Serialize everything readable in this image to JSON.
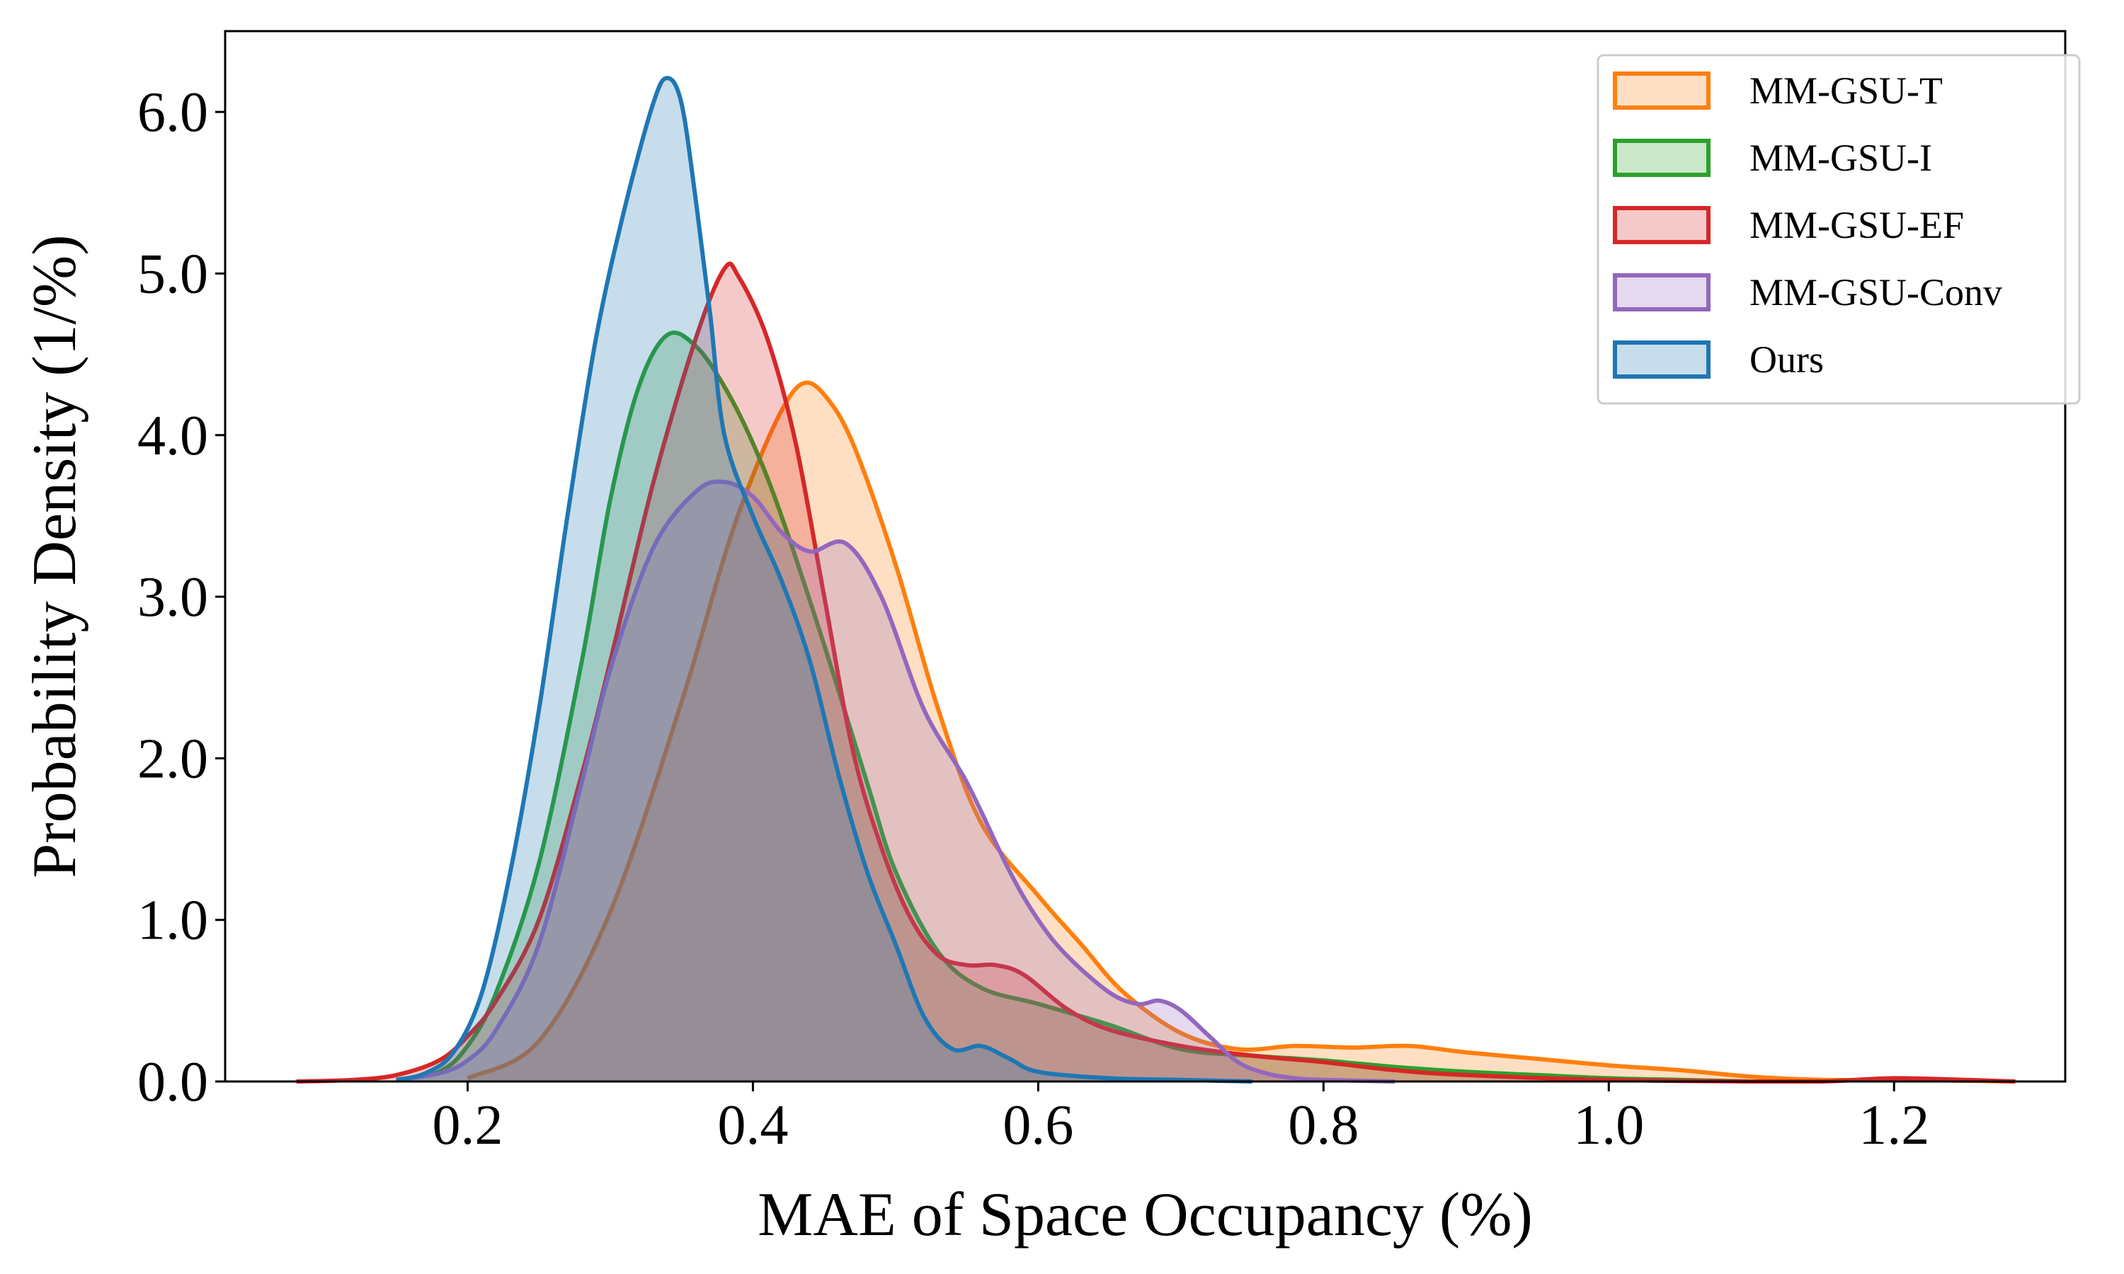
{
  "chart_data": {
    "type": "area",
    "title": "",
    "xlabel": "MAE of Space Occupancy (%)",
    "ylabel": "Probability Density (1/%)",
    "xlim": [
      0.03,
      1.32
    ],
    "ylim": [
      0,
      6.5
    ],
    "xticks": [
      "0.2",
      "0.4",
      "0.6",
      "0.8",
      "1.0",
      "1.2"
    ],
    "yticks": [
      "0.0",
      "1.0",
      "2.0",
      "3.0",
      "4.0",
      "5.0",
      "6.0"
    ],
    "legend_position": "top-right",
    "grid": false,
    "series": [
      {
        "name": "MM-GSU-T",
        "color": "#ff7f0e",
        "points": [
          [
            0.2,
            0.02
          ],
          [
            0.25,
            0.25
          ],
          [
            0.3,
            1.05
          ],
          [
            0.35,
            2.35
          ],
          [
            0.38,
            3.25
          ],
          [
            0.4,
            3.75
          ],
          [
            0.42,
            4.15
          ],
          [
            0.435,
            4.32
          ],
          [
            0.45,
            4.25
          ],
          [
            0.47,
            3.95
          ],
          [
            0.5,
            3.2
          ],
          [
            0.53,
            2.3
          ],
          [
            0.56,
            1.6
          ],
          [
            0.6,
            1.15
          ],
          [
            0.63,
            0.85
          ],
          [
            0.66,
            0.55
          ],
          [
            0.7,
            0.3
          ],
          [
            0.74,
            0.2
          ],
          [
            0.78,
            0.22
          ],
          [
            0.82,
            0.21
          ],
          [
            0.86,
            0.22
          ],
          [
            0.9,
            0.18
          ],
          [
            0.95,
            0.14
          ],
          [
            1.0,
            0.1
          ],
          [
            1.05,
            0.07
          ],
          [
            1.1,
            0.03
          ],
          [
            1.15,
            0.01
          ],
          [
            1.2,
            0.01
          ],
          [
            1.285,
            0.0
          ]
        ]
      },
      {
        "name": "MM-GSU-I",
        "color": "#2ca02c",
        "points": [
          [
            0.15,
            0.01
          ],
          [
            0.18,
            0.06
          ],
          [
            0.2,
            0.22
          ],
          [
            0.22,
            0.55
          ],
          [
            0.25,
            1.35
          ],
          [
            0.28,
            2.6
          ],
          [
            0.3,
            3.6
          ],
          [
            0.32,
            4.3
          ],
          [
            0.34,
            4.62
          ],
          [
            0.36,
            4.55
          ],
          [
            0.38,
            4.3
          ],
          [
            0.4,
            3.95
          ],
          [
            0.42,
            3.5
          ],
          [
            0.45,
            2.7
          ],
          [
            0.48,
            1.85
          ],
          [
            0.5,
            1.3
          ],
          [
            0.53,
            0.8
          ],
          [
            0.56,
            0.58
          ],
          [
            0.6,
            0.48
          ],
          [
            0.65,
            0.35
          ],
          [
            0.7,
            0.2
          ],
          [
            0.75,
            0.16
          ],
          [
            0.8,
            0.13
          ],
          [
            0.85,
            0.09
          ],
          [
            0.9,
            0.06
          ],
          [
            0.95,
            0.04
          ],
          [
            1.0,
            0.02
          ],
          [
            1.05,
            0.01
          ],
          [
            1.1,
            0.0
          ]
        ]
      },
      {
        "name": "MM-GSU-EF",
        "color": "#d62728",
        "points": [
          [
            0.08,
            0.0
          ],
          [
            0.12,
            0.01
          ],
          [
            0.15,
            0.04
          ],
          [
            0.18,
            0.13
          ],
          [
            0.2,
            0.28
          ],
          [
            0.22,
            0.5
          ],
          [
            0.25,
            1.0
          ],
          [
            0.28,
            1.9
          ],
          [
            0.3,
            2.6
          ],
          [
            0.33,
            3.7
          ],
          [
            0.36,
            4.6
          ],
          [
            0.38,
            5.03
          ],
          [
            0.39,
            4.98
          ],
          [
            0.41,
            4.6
          ],
          [
            0.43,
            3.95
          ],
          [
            0.45,
            3.0
          ],
          [
            0.47,
            2.05
          ],
          [
            0.49,
            1.45
          ],
          [
            0.51,
            1.02
          ],
          [
            0.53,
            0.78
          ],
          [
            0.55,
            0.72
          ],
          [
            0.57,
            0.72
          ],
          [
            0.59,
            0.66
          ],
          [
            0.62,
            0.45
          ],
          [
            0.65,
            0.32
          ],
          [
            0.7,
            0.22
          ],
          [
            0.75,
            0.16
          ],
          [
            0.8,
            0.12
          ],
          [
            0.85,
            0.07
          ],
          [
            0.9,
            0.04
          ],
          [
            1.0,
            0.01
          ],
          [
            1.1,
            0.0
          ],
          [
            1.15,
            0.0
          ],
          [
            1.2,
            0.02
          ],
          [
            1.25,
            0.01
          ],
          [
            1.285,
            0.0
          ]
        ]
      },
      {
        "name": "MM-GSU-Conv",
        "color": "#9467bd",
        "points": [
          [
            0.15,
            0.01
          ],
          [
            0.18,
            0.05
          ],
          [
            0.2,
            0.13
          ],
          [
            0.22,
            0.32
          ],
          [
            0.25,
            0.85
          ],
          [
            0.28,
            1.85
          ],
          [
            0.3,
            2.55
          ],
          [
            0.33,
            3.3
          ],
          [
            0.36,
            3.65
          ],
          [
            0.38,
            3.71
          ],
          [
            0.4,
            3.62
          ],
          [
            0.42,
            3.4
          ],
          [
            0.44,
            3.28
          ],
          [
            0.465,
            3.33
          ],
          [
            0.49,
            3.0
          ],
          [
            0.52,
            2.3
          ],
          [
            0.55,
            1.85
          ],
          [
            0.58,
            1.3
          ],
          [
            0.6,
            1.0
          ],
          [
            0.62,
            0.78
          ],
          [
            0.65,
            0.55
          ],
          [
            0.67,
            0.48
          ],
          [
            0.685,
            0.5
          ],
          [
            0.7,
            0.44
          ],
          [
            0.72,
            0.28
          ],
          [
            0.74,
            0.12
          ],
          [
            0.76,
            0.05
          ],
          [
            0.78,
            0.02
          ],
          [
            0.8,
            0.01
          ],
          [
            0.85,
            0.0
          ]
        ]
      },
      {
        "name": "Ours",
        "color": "#1f77b4",
        "points": [
          [
            0.15,
            0.01
          ],
          [
            0.17,
            0.05
          ],
          [
            0.19,
            0.18
          ],
          [
            0.21,
            0.55
          ],
          [
            0.23,
            1.3
          ],
          [
            0.25,
            2.3
          ],
          [
            0.27,
            3.5
          ],
          [
            0.29,
            4.6
          ],
          [
            0.31,
            5.4
          ],
          [
            0.33,
            6.05
          ],
          [
            0.34,
            6.21
          ],
          [
            0.35,
            6.05
          ],
          [
            0.36,
            5.45
          ],
          [
            0.37,
            4.75
          ],
          [
            0.38,
            4.0
          ],
          [
            0.4,
            3.5
          ],
          [
            0.42,
            3.1
          ],
          [
            0.44,
            2.6
          ],
          [
            0.46,
            1.9
          ],
          [
            0.48,
            1.3
          ],
          [
            0.5,
            0.85
          ],
          [
            0.52,
            0.4
          ],
          [
            0.54,
            0.2
          ],
          [
            0.56,
            0.22
          ],
          [
            0.58,
            0.14
          ],
          [
            0.6,
            0.06
          ],
          [
            0.65,
            0.02
          ],
          [
            0.7,
            0.01
          ],
          [
            0.75,
            0.0
          ]
        ]
      }
    ]
  }
}
